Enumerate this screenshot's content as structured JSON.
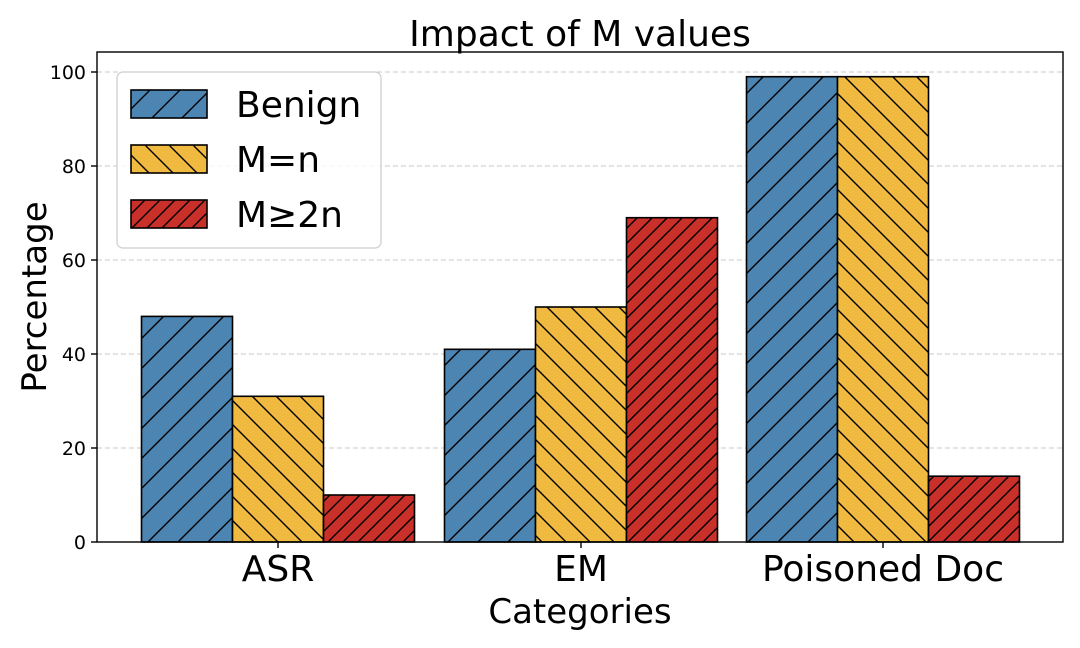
{
  "chart_data": {
    "type": "bar",
    "title": "Impact of M values",
    "xlabel": "Categories",
    "ylabel": "Percentage",
    "categories": [
      "ASR",
      "EM",
      "Poisoned Doc"
    ],
    "series": [
      {
        "name": "Benign",
        "values": [
          48,
          41,
          99
        ],
        "color": "#4c84b2",
        "hatch": "/"
      },
      {
        "name": "M=n",
        "values": [
          31,
          50,
          99
        ],
        "color": "#f0b93f",
        "hatch": "\\"
      },
      {
        "name": "M≥2n",
        "values": [
          10,
          69,
          14
        ],
        "color": "#c9302a",
        "hatch": "//"
      }
    ],
    "ylim": [
      0,
      105
    ],
    "yticks": [
      0,
      20,
      40,
      60,
      80,
      100
    ],
    "grid": true,
    "legend_position": "top-left"
  }
}
